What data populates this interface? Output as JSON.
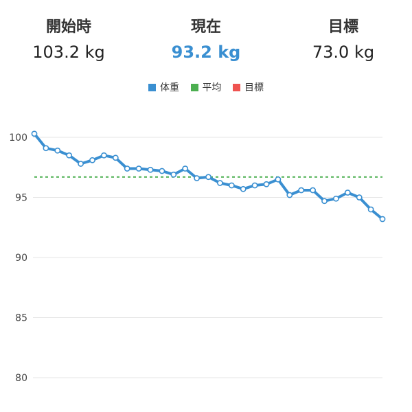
{
  "stats": {
    "start": {
      "label": "開始時",
      "value": "103.2 kg"
    },
    "current": {
      "label": "現在",
      "value": "93.2 kg"
    },
    "goal": {
      "label": "目標",
      "value": "73.0 kg"
    }
  },
  "colors": {
    "weight": "#3a8fd1",
    "average": "#4caf50",
    "goal": "#ef5350",
    "current_value": "#3a8fd1",
    "grid": "#e6e6e6"
  },
  "legend": [
    {
      "label": "体重",
      "color": "#3a8fd1"
    },
    {
      "label": "平均",
      "color": "#4caf50"
    },
    {
      "label": "目標",
      "color": "#ef5350"
    }
  ],
  "chart_data": {
    "type": "line",
    "title": "",
    "xlabel": "",
    "ylabel": "",
    "ylim": [
      79,
      101.5
    ],
    "yticks": [
      80,
      85,
      90,
      95,
      100
    ],
    "grid": true,
    "legend_position": "top-center",
    "series": [
      {
        "name": "体重",
        "values": [
          100.3,
          99.1,
          98.9,
          98.5,
          97.8,
          98.1,
          98.5,
          98.3,
          97.4,
          97.4,
          97.3,
          97.2,
          96.9,
          97.4,
          96.6,
          96.7,
          96.2,
          96.0,
          95.7,
          96.0,
          96.1,
          96.5,
          95.2,
          95.6,
          95.6,
          94.7,
          94.9,
          95.4,
          95.0,
          94.0,
          93.2
        ]
      },
      {
        "name": "平均",
        "constant": 96.7
      }
    ]
  }
}
